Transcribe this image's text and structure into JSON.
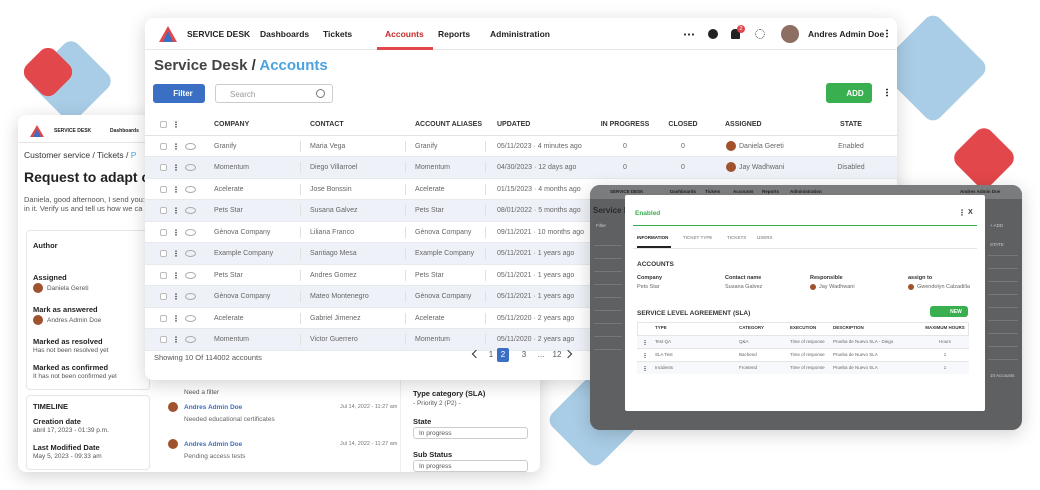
{
  "main": {
    "nav": {
      "brand": "SERVICE DESK",
      "items": [
        "Dashboards",
        "Tickets",
        "Accounts",
        "Reports",
        "Administration"
      ],
      "active": 2,
      "notifications": "2",
      "user": "Andres Admin Doe"
    },
    "breadcrumb": {
      "root": "Service Desk",
      "current": "Accounts"
    },
    "filter": "Filter",
    "search": "Search",
    "add": "ADD",
    "table": {
      "columns": [
        "COMPANY",
        "CONTACT",
        "ACCOUNT ALIASES",
        "UPDATED",
        "IN PROGRESS",
        "CLOSED",
        "ASSIGNED",
        "STATE"
      ],
      "rows": [
        [
          "Granify",
          "Maria Vega",
          "Granify",
          "05/11/2023 · 4 minutes ago",
          "0",
          "0",
          "Daniela Gereti",
          "Enabled"
        ],
        [
          "Momentum",
          "Diego Villarroel",
          "Momentum",
          "04/30/2023 · 12 days ago",
          "0",
          "0",
          "Jay Wadhwani",
          "Disabled"
        ],
        [
          "Acelerate",
          "Jose Bonssin",
          "Acelerate",
          "01/15/2023 · 4 months ago"
        ],
        [
          "Pets Star",
          "Susana Galvez",
          "Pets Star",
          "08/01/2022 · 5 months ago"
        ],
        [
          "Gènova Company",
          "Liliana Franco",
          "Gènova Company",
          "09/11/2021 · 10 months ago"
        ],
        [
          "Example Company",
          "Santiago Mesa",
          "Example Company",
          "05/11/2021 · 1 years ago"
        ],
        [
          "Pets Star",
          "Andres Gomez",
          "Pets Star",
          "05/11/2021 · 1 years ago"
        ],
        [
          "Gènova Company",
          "Mateo Montenegro",
          "Gènova Company",
          "05/11/2021 · 1 years ago"
        ],
        [
          "Acelerate",
          "Gabriel Jimenez",
          "Acelerate",
          "05/11/2020 · 2 years ago"
        ],
        [
          "Momentum",
          "Victor Guerrero",
          "Momentum",
          "05/11/2020 · 2 years ago"
        ]
      ]
    },
    "footer": {
      "summary": "Showing 10 Of 114002 accounts",
      "pages": [
        "1",
        "2",
        "3",
        "...",
        "12"
      ],
      "current": 1
    }
  },
  "ticket": {
    "nav": {
      "brand": "SERVICE DESK",
      "item": "Dashboards"
    },
    "breadcrumb": "Customer service / Tickets / ",
    "breadcrumb_current": "P",
    "title": "Request to adapt con",
    "message": [
      "Daniela, good afternoon, I send you:",
      "in it. Verify us and tell us how we ca"
    ],
    "author": "Author",
    "assigned": "Assigned",
    "assigned_name": "Daniela Gereti",
    "answered": "Mark as answered",
    "answered_name": "Andres Admin Doe",
    "resolved": "Marked as resolved",
    "resolved_note": "Has not been resolved yet",
    "confirmed": "Marked as confirmed",
    "confirmed_note": "It has not been confirmed yet",
    "timeline": "TIMELINE",
    "creation": "Creation date",
    "creation_value": "abril 17, 2023 - 01:39 p.m.",
    "modified": "Last Modified Date",
    "modified_value": "May 5, 2023 - 09:33 am",
    "note": "Need a filter",
    "comments": [
      {
        "author": "Andres Admin Doe",
        "date": "Jul 14, 2022 - 11:27 am",
        "text": "Needed educational certificates"
      },
      {
        "author": "Andres Admin Doe",
        "date": "Jul 14, 2022 - 11:27 am",
        "text": "Pending access tests"
      }
    ],
    "type_category": "Type category (SLA)",
    "priority": "- Priority 2 (P2) -",
    "state": "State",
    "state_value": "In progress",
    "sub_status": "Sub Status",
    "sub_status_value": "In progress"
  },
  "detail": {
    "background": {
      "nav": [
        "SERVICE DESK",
        "Dashboards",
        "Tickets",
        "Accounts",
        "Reports",
        "Administration"
      ],
      "user": "Andres Admin Doe",
      "title": "Service D",
      "filter": "Filter",
      "add": "+ ADD",
      "state": "STATE",
      "count": "10 Accounts"
    },
    "status": "Enabled",
    "close": "X",
    "tabs": [
      "INFORMATION",
      "TICKET TYPE",
      "TICKETS",
      "USERS"
    ],
    "active_tab": 0,
    "section": "ACCOUNTS",
    "fields": [
      {
        "label": "Company",
        "value": "Pets Star"
      },
      {
        "label": "Contact name",
        "value": "Susana Galvez"
      },
      {
        "label": "Responsible",
        "value": "Jay Wadhwani"
      },
      {
        "label": "assign to",
        "value": "Gwendolyn Calzadilla"
      }
    ],
    "sla_title": "SERVICE LEVEL AGREEMENT (SLA)",
    "new": "NEW",
    "sla": {
      "columns": [
        "TYPE",
        "CATEGORY",
        "EXECUTION",
        "DESCRIPTION",
        "MAXIMUM HOURS"
      ],
      "rows": [
        [
          "Test QA",
          "Q&A",
          "Time of response",
          "Prueba de Nuevo SLA - Diego",
          "Hours"
        ],
        [
          "SLA Test",
          "Bachend",
          "Time of response",
          "Prueba de Nuevo SLA",
          "1"
        ],
        [
          "Incidents",
          "Frontend",
          "Time of response",
          "Prueba de Nuevo SLA",
          "1"
        ]
      ]
    }
  }
}
